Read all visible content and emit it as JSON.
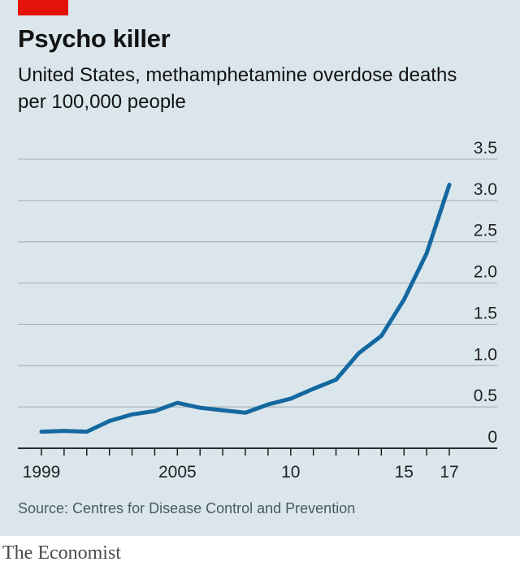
{
  "header": {
    "title": "Psycho killer",
    "subtitle": "United States, methamphetamine overdose deaths per 100,000 people"
  },
  "footer": {
    "source": "Source: Centres for Disease Control and Prevention",
    "brand": "The Economist"
  },
  "colors": {
    "background": "#dae6ec",
    "line": "#14689f",
    "accent": "#e3120b",
    "grid": "#a9b6bc",
    "axis": "#121212"
  },
  "chart_data": {
    "type": "line",
    "title": "Psycho killer",
    "subtitle": "United States, methamphetamine overdose deaths per 100,000 people",
    "xlabel": "",
    "ylabel": "",
    "x": [
      1999,
      2000,
      2001,
      2002,
      2003,
      2004,
      2005,
      2006,
      2007,
      2008,
      2009,
      2010,
      2011,
      2012,
      2013,
      2014,
      2015,
      2016,
      2017
    ],
    "series": [
      {
        "values": [
          0.2,
          0.21,
          0.2,
          0.33,
          0.41,
          0.45,
          0.55,
          0.49,
          0.46,
          0.43,
          0.53,
          0.6,
          0.72,
          0.83,
          1.15,
          1.36,
          1.8,
          2.36,
          3.19
        ]
      }
    ],
    "xlim": [
      1999,
      2017
    ],
    "ylim": [
      0,
      3.5
    ],
    "y_ticks": [
      0,
      0.5,
      1.0,
      1.5,
      2.0,
      2.5,
      3.0,
      3.5
    ],
    "y_tick_labels": [
      "0",
      "0.5",
      "1.0",
      "1.5",
      "2.0",
      "2.5",
      "3.0",
      "3.5"
    ],
    "x_ticks": [
      1999,
      2005,
      2010,
      2015,
      2017
    ],
    "x_tick_labels": [
      "1999",
      "2005",
      "10",
      "15",
      "17"
    ],
    "y_axis_position": "right",
    "grid": true,
    "legend": "none"
  }
}
